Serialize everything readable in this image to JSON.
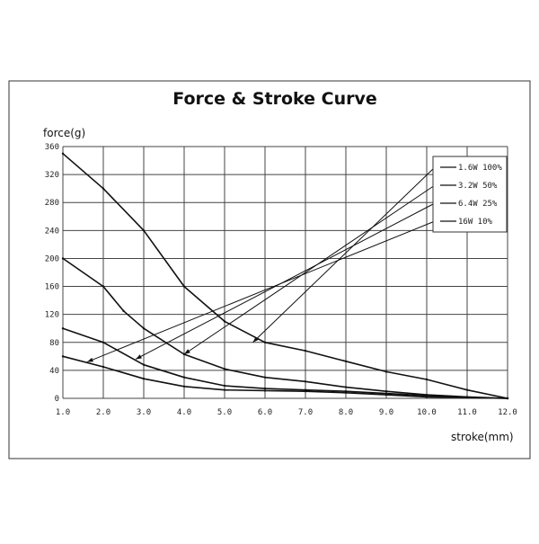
{
  "chart_data": {
    "type": "line",
    "title": "Force & Stroke Curve",
    "ylabel": "force(g)",
    "xlabel": "stroke(mm)",
    "xlim": [
      1.0,
      12.0
    ],
    "ylim": [
      0,
      360
    ],
    "x_ticks": [
      "1.0",
      "2.0",
      "3.0",
      "4.0",
      "5.0",
      "6.0",
      "7.0",
      "8.0",
      "9.0",
      "10.0",
      "11.0",
      "12.0"
    ],
    "y_ticks": [
      "0",
      "40",
      "80",
      "120",
      "160",
      "200",
      "240",
      "280",
      "320",
      "360"
    ],
    "grid": true,
    "legend_position": "top-right",
    "series": [
      {
        "name": "1.6W 100%",
        "points": [
          [
            1.0,
            350
          ],
          [
            2.0,
            300
          ],
          [
            3.0,
            240
          ],
          [
            4.0,
            160
          ],
          [
            5.0,
            110
          ],
          [
            6.0,
            80
          ],
          [
            7.0,
            68
          ],
          [
            8.0,
            53
          ],
          [
            9.0,
            38
          ],
          [
            10.0,
            27
          ],
          [
            11.0,
            12
          ],
          [
            12.0,
            0
          ]
        ]
      },
      {
        "name": "3.2W 50%",
        "points": [
          [
            1.0,
            200
          ],
          [
            2.0,
            160
          ],
          [
            2.5,
            125
          ],
          [
            3.0,
            100
          ],
          [
            4.0,
            63
          ],
          [
            5.0,
            42
          ],
          [
            6.0,
            30
          ],
          [
            7.0,
            24
          ],
          [
            8.0,
            16
          ],
          [
            9.0,
            10
          ],
          [
            10.0,
            5
          ],
          [
            11.0,
            2
          ],
          [
            12.0,
            0
          ]
        ]
      },
      {
        "name": "6.4W 25%",
        "points": [
          [
            1.0,
            100
          ],
          [
            2.0,
            80
          ],
          [
            3.0,
            48
          ],
          [
            4.0,
            30
          ],
          [
            5.0,
            18
          ],
          [
            6.0,
            14
          ],
          [
            7.0,
            12
          ],
          [
            8.0,
            10
          ],
          [
            9.0,
            7
          ],
          [
            10.0,
            4
          ],
          [
            11.0,
            1
          ],
          [
            12.0,
            0
          ]
        ]
      },
      {
        "name": "16W 10%",
        "points": [
          [
            1.0,
            60
          ],
          [
            2.0,
            45
          ],
          [
            3.0,
            28
          ],
          [
            4.0,
            17
          ],
          [
            5.0,
            12
          ],
          [
            6.0,
            11
          ],
          [
            7.0,
            10
          ],
          [
            8.0,
            8
          ],
          [
            9.0,
            5
          ],
          [
            10.0,
            2
          ],
          [
            11.0,
            1
          ],
          [
            12.0,
            0
          ]
        ]
      }
    ],
    "legend_pointers": [
      {
        "series": "1.6W 100%",
        "x": 5.7,
        "y": 80
      },
      {
        "series": "3.2W 50%",
        "x": 4.0,
        "y": 63
      },
      {
        "series": "6.4W 25%",
        "x": 2.8,
        "y": 56
      },
      {
        "series": "16W 10%",
        "x": 1.6,
        "y": 52
      }
    ]
  }
}
